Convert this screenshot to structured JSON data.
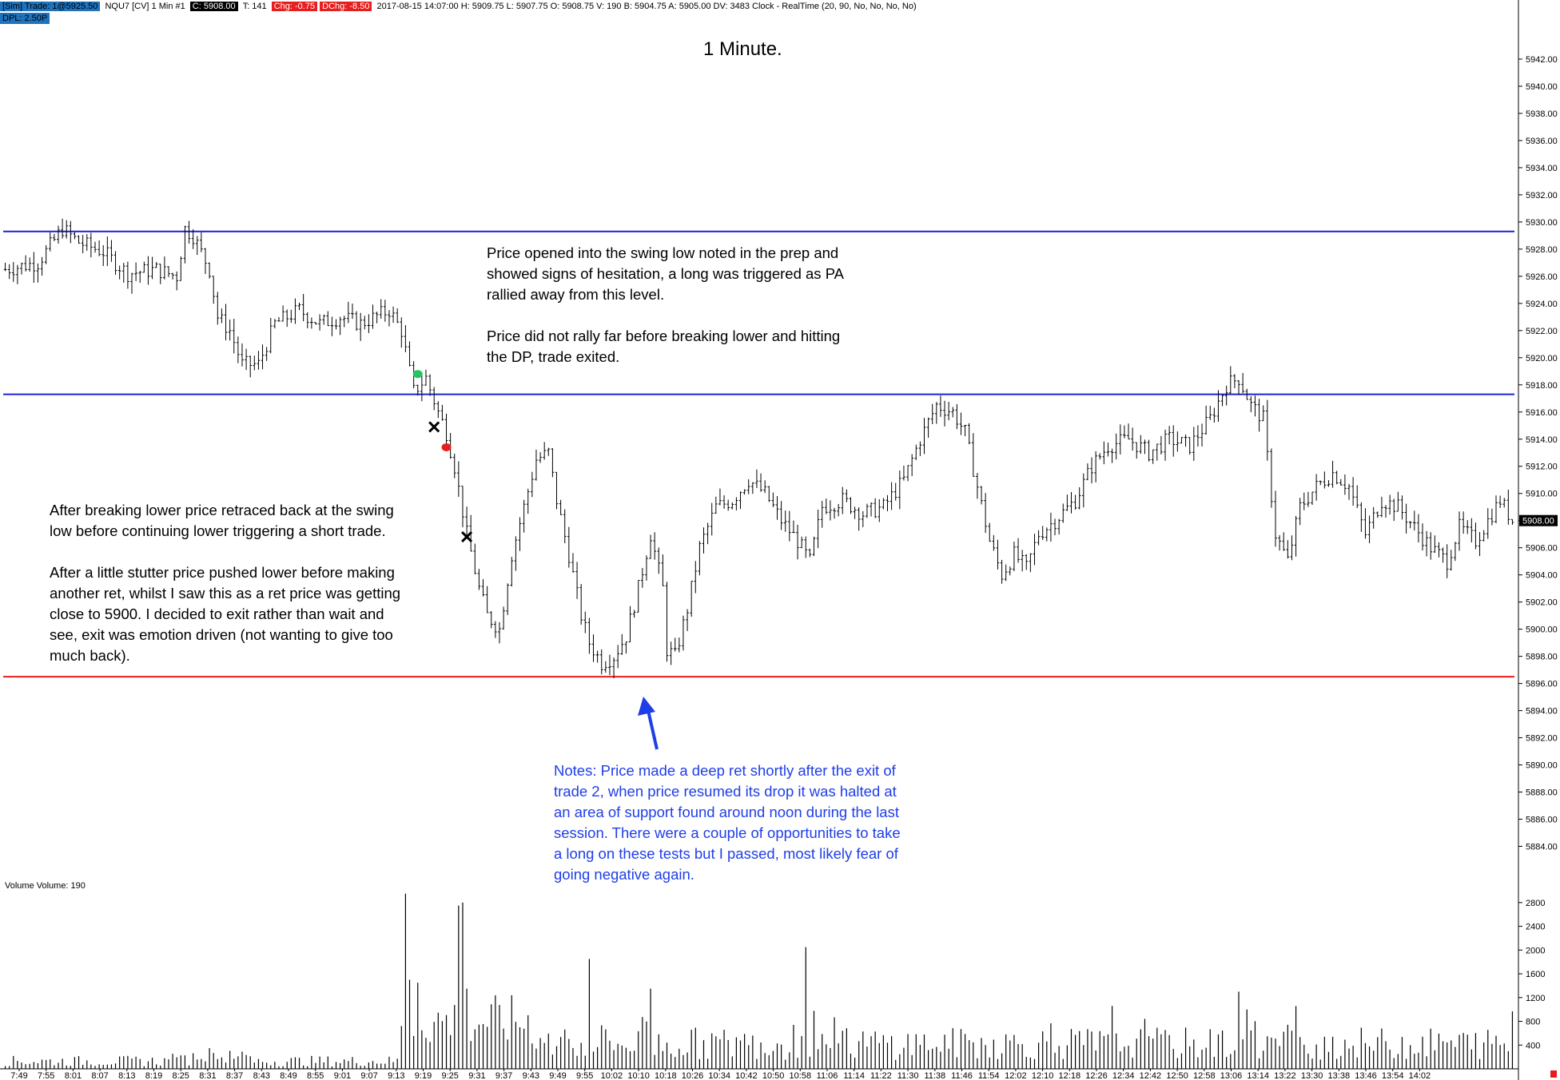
{
  "status_bar": {
    "instrument": "[Sim]  Trade: 1@5925.50",
    "symbol": "NQU7 [CV]  1 Min   #1",
    "close": "C: 5908.00",
    "ticks": "T: 141",
    "change": "Chg: -0.75",
    "day_change": "DChg: -8.50",
    "details": "2017-08-15 14:07:00  H: 5909.75  L: 5907.75  O: 5908.75  V: 190  B: 5904.75  A: 5905.00  DV: 3483  Clock - RealTime   (20, 90, No, No, No, No)",
    "dpl": "DPL: 2.50P"
  },
  "chart_data": [
    {
      "type": "candlestick",
      "title": "1 Minute.",
      "y_tick_labels": [
        "5942.00",
        "5940.00",
        "5938.00",
        "5936.00",
        "5934.00",
        "5932.00",
        "5930.00",
        "5928.00",
        "5926.00",
        "5924.00",
        "5922.00",
        "5920.00",
        "5918.00",
        "5916.00",
        "5914.00",
        "5912.00",
        "5910.00",
        "5908.00",
        "5906.00",
        "5904.00",
        "5902.00",
        "5900.00",
        "5898.00",
        "5896.00",
        "5894.00",
        "5892.00",
        "5890.00",
        "5888.00",
        "5886.00",
        "5884.00"
      ],
      "ylim": [
        5882.5,
        5944
      ],
      "x_tick_labels": [
        "7:49",
        "7:55",
        "8:01",
        "8:07",
        "8:13",
        "8:19",
        "8:25",
        "8:31",
        "8:37",
        "8:43",
        "8:49",
        "8:55",
        "9:01",
        "9:07",
        "9:13",
        "9:19",
        "9:25",
        "9:31",
        "9:37",
        "9:43",
        "9:49",
        "9:55",
        "10:02",
        "10:10",
        "10:18",
        "10:26",
        "10:34",
        "10:42",
        "10:50",
        "10:58",
        "11:06",
        "11:14",
        "11:22",
        "11:30",
        "11:38",
        "11:46",
        "11:54",
        "12:02",
        "12:10",
        "12:18",
        "12:26",
        "12:34",
        "12:42",
        "12:50",
        "12:58",
        "13:06",
        "13:14",
        "13:22",
        "13:30",
        "13:38",
        "13:46",
        "13:54",
        "14:02"
      ],
      "last_price_label": "5908.00",
      "horizontal_lines": [
        {
          "price": 5929.3,
          "color": "#1f1fd6"
        },
        {
          "price": 5917.3,
          "color": "#1f1fd6"
        },
        {
          "price": 5896.5,
          "color": "#e81d1d"
        }
      ],
      "price_path": [
        [
          0,
          5926.5
        ],
        [
          8,
          5927.0
        ],
        [
          14,
          5929.5
        ],
        [
          18,
          5928.5
        ],
        [
          24,
          5927.8
        ],
        [
          30,
          5926.2
        ],
        [
          37,
          5926.5
        ],
        [
          42,
          5926.0
        ],
        [
          44,
          5929.5
        ],
        [
          46,
          5929.0
        ],
        [
          50,
          5926.5
        ],
        [
          52,
          5923.0
        ],
        [
          55,
          5922.0
        ],
        [
          58,
          5919.5
        ],
        [
          62,
          5919.5
        ],
        [
          66,
          5922.5
        ],
        [
          72,
          5923.5
        ],
        [
          77,
          5922.5
        ],
        [
          82,
          5923.0
        ],
        [
          87,
          5922.5
        ],
        [
          94,
          5923.5
        ],
        [
          97,
          5922.0
        ],
        [
          100,
          5917.5
        ],
        [
          103,
          5918.5
        ],
        [
          106,
          5916.0
        ],
        [
          108,
          5914.5
        ],
        [
          110,
          5912.0
        ],
        [
          113,
          5907.0
        ],
        [
          116,
          5903.0
        ],
        [
          118,
          5901.0
        ],
        [
          121,
          5900.0
        ],
        [
          124,
          5905.5
        ],
        [
          127,
          5909.0
        ],
        [
          130,
          5912.5
        ],
        [
          133,
          5913.0
        ],
        [
          135,
          5909.5
        ],
        [
          138,
          5905.5
        ],
        [
          141,
          5901.0
        ],
        [
          143,
          5899.0
        ],
        [
          146,
          5897.5
        ],
        [
          149,
          5898.0
        ],
        [
          152,
          5899.5
        ],
        [
          155,
          5903.0
        ],
        [
          158,
          5907.0
        ],
        [
          161,
          5903.0
        ],
        [
          162,
          5898.5
        ],
        [
          164,
          5898.0
        ],
        [
          167,
          5901.5
        ],
        [
          170,
          5906.0
        ],
        [
          174,
          5909.0
        ],
        [
          178,
          5909.5
        ],
        [
          182,
          5911.0
        ],
        [
          186,
          5910.0
        ],
        [
          190,
          5908.0
        ],
        [
          194,
          5906.5
        ],
        [
          197,
          5905.0
        ],
        [
          200,
          5909.0
        ],
        [
          205,
          5909.5
        ],
        [
          210,
          5908.5
        ],
        [
          215,
          5909.0
        ],
        [
          220,
          5911.0
        ],
        [
          224,
          5914.0
        ],
        [
          228,
          5916.5
        ],
        [
          232,
          5916.0
        ],
        [
          235,
          5914.5
        ],
        [
          238,
          5910.5
        ],
        [
          241,
          5906.5
        ],
        [
          244,
          5904.0
        ],
        [
          247,
          5905.5
        ],
        [
          250,
          5904.5
        ],
        [
          253,
          5907.0
        ],
        [
          257,
          5908.0
        ],
        [
          262,
          5909.5
        ],
        [
          266,
          5912.0
        ],
        [
          270,
          5913.5
        ],
        [
          275,
          5914.0
        ],
        [
          280,
          5913.0
        ],
        [
          285,
          5914.0
        ],
        [
          290,
          5913.5
        ],
        [
          295,
          5915.5
        ],
        [
          299,
          5918.0
        ],
        [
          302,
          5918.5
        ],
        [
          305,
          5916.5
        ],
        [
          308,
          5915.5
        ],
        [
          311,
          5907.0
        ],
        [
          314,
          5905.0
        ],
        [
          317,
          5909.0
        ],
        [
          321,
          5910.5
        ],
        [
          325,
          5911.5
        ],
        [
          329,
          5910.5
        ],
        [
          333,
          5907.0
        ],
        [
          337,
          5909.5
        ],
        [
          341,
          5909.0
        ],
        [
          345,
          5907.5
        ],
        [
          349,
          5906.0
        ],
        [
          353,
          5905.0
        ],
        [
          356,
          5907.5
        ],
        [
          360,
          5906.5
        ],
        [
          363,
          5908.0
        ],
        [
          366,
          5909.5
        ],
        [
          369,
          5908.0
        ]
      ],
      "annotations": [
        {
          "kind": "entry-long",
          "color": "#22c55e",
          "minute": 101,
          "price": 5918.8
        },
        {
          "kind": "exit",
          "color": "#000000",
          "minute": 105,
          "price": 5914.9
        },
        {
          "kind": "entry-short",
          "color": "#e81d1d",
          "minute": 108,
          "price": 5913.4
        },
        {
          "kind": "exit",
          "color": "#000000",
          "minute": 113,
          "price": 5906.8
        }
      ]
    },
    {
      "type": "bar",
      "label": "Volume  Volume: 190",
      "y_tick_labels": [
        "2800",
        "2400",
        "2000",
        "1600",
        "1200",
        "800",
        "400"
      ],
      "ylim": [
        0,
        3000
      ],
      "spikes": [
        {
          "minute": 98,
          "value": 2950
        },
        {
          "minute": 99,
          "value": 1500
        },
        {
          "minute": 101,
          "value": 1450
        },
        {
          "minute": 111,
          "value": 2750
        },
        {
          "minute": 112,
          "value": 2800
        },
        {
          "minute": 113,
          "value": 1350
        },
        {
          "minute": 143,
          "value": 1850
        },
        {
          "minute": 158,
          "value": 1350
        },
        {
          "minute": 196,
          "value": 2050
        },
        {
          "minute": 302,
          "value": 1300
        },
        {
          "minute": 304,
          "value": 1000
        }
      ]
    }
  ],
  "notes": {
    "top": "Price opened into the swing low noted in the prep and\nshowed signs of hesitation, a long was triggered as PA\nrallied away from this level.\n\nPrice did not rally far before breaking lower and hitting\nthe DP, trade exited.",
    "left": "After breaking lower price retraced back at the swing\nlow before continuing lower triggering a short trade.\n\nAfter a little stutter price pushed lower before making\nanother ret, whilst I saw this as a ret price was getting\nclose to 5900.  I decided to exit rather than wait and\nsee, exit was emotion driven (not wanting to give too\nmuch back).",
    "bottom": "Notes:  Price made a deep ret shortly after the exit of\ntrade 2, when price resumed its drop it was halted at\nan area of support found around noon during the last\nsession.  There were a couple of opportunities to take\na long on these tests but I passed, most likely fear of\ngoing negative again."
  }
}
